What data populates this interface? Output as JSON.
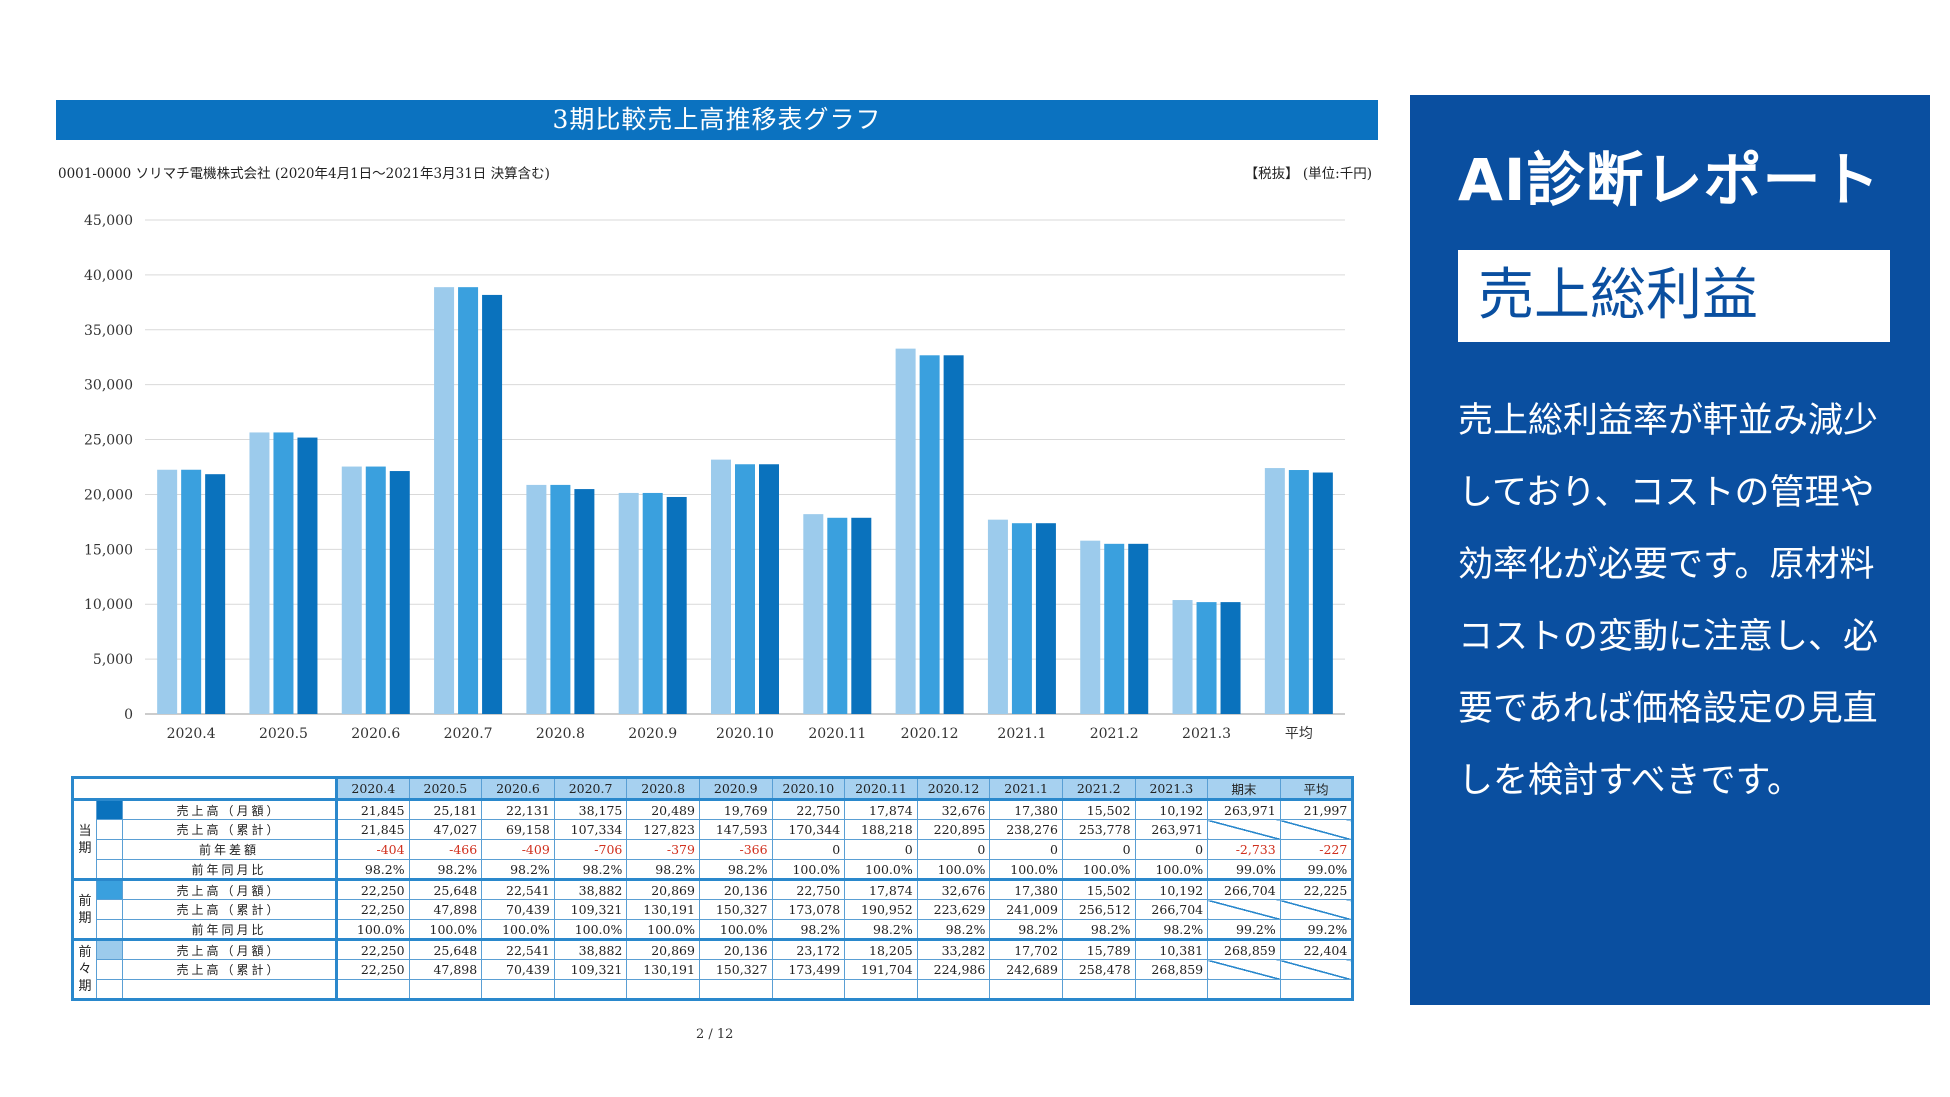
{
  "header": {
    "title": "3期比較売上高推移表グラフ",
    "company": "0001-0000 ソリマチ電機株式会社 (2020年4月1日～2021年3月31日 決算含む)",
    "tax_unit": "【税抜】 (単位:千円)"
  },
  "chart_data": {
    "type": "bar",
    "categories": [
      "2020.4",
      "2020.5",
      "2020.6",
      "2020.7",
      "2020.8",
      "2020.9",
      "2020.10",
      "2020.11",
      "2020.12",
      "2021.1",
      "2021.2",
      "2021.3",
      "平均"
    ],
    "series": [
      {
        "values": [
          22250,
          25648,
          22541,
          38882,
          20869,
          20136,
          23172,
          18205,
          33282,
          17702,
          15789,
          10381,
          22404
        ]
      },
      {
        "values": [
          22250,
          25648,
          22541,
          38882,
          20869,
          20136,
          22750,
          17874,
          32676,
          17380,
          15502,
          10192,
          22225
        ]
      },
      {
        "values": [
          21845,
          25181,
          22131,
          38175,
          20489,
          19769,
          22750,
          17874,
          32676,
          17380,
          15502,
          10192,
          21997
        ]
      }
    ],
    "yticks": [
      "0",
      "5,000",
      "10,000",
      "15,000",
      "20,000",
      "25,000",
      "30,000",
      "35,000",
      "40,000",
      "45,000"
    ],
    "ylim": [
      0,
      45000
    ],
    "grid": true,
    "colors": [
      "#9ccbec",
      "#3aa0de",
      "#0a72bd"
    ]
  },
  "table": {
    "columns": [
      "2020.4",
      "2020.5",
      "2020.6",
      "2020.7",
      "2020.8",
      "2020.9",
      "2020.10",
      "2020.11",
      "2020.12",
      "2021.1",
      "2021.2",
      "2021.3",
      "期末",
      "平均"
    ],
    "swatch_colors": [
      "#0a72bd",
      "#3aa0de",
      "#9ccbec"
    ],
    "groups": [
      {
        "label": "当期",
        "rows": [
          {
            "label": "売上高（月額）",
            "values": [
              "21,845",
              "25,181",
              "22,131",
              "38,175",
              "20,489",
              "19,769",
              "22,750",
              "17,874",
              "32,676",
              "17,380",
              "15,502",
              "10,192",
              "263,971",
              "21,997"
            ]
          },
          {
            "label": "売上高（累計）",
            "values": [
              "21,845",
              "47,027",
              "69,158",
              "107,334",
              "127,823",
              "147,593",
              "170,344",
              "188,218",
              "220,895",
              "238,276",
              "253,778",
              "263,971",
              "",
              ""
            ]
          },
          {
            "label": "前年差額",
            "values": [
              "-404",
              "-466",
              "-409",
              "-706",
              "-379",
              "-366",
              "0",
              "0",
              "0",
              "0",
              "0",
              "0",
              "-2,733",
              "-227"
            ]
          },
          {
            "label": "前年同月比",
            "values": [
              "98.2%",
              "98.2%",
              "98.2%",
              "98.2%",
              "98.2%",
              "98.2%",
              "100.0%",
              "100.0%",
              "100.0%",
              "100.0%",
              "100.0%",
              "100.0%",
              "99.0%",
              "99.0%"
            ]
          }
        ]
      },
      {
        "label": "前期",
        "rows": [
          {
            "label": "売上高（月額）",
            "values": [
              "22,250",
              "25,648",
              "22,541",
              "38,882",
              "20,869",
              "20,136",
              "22,750",
              "17,874",
              "32,676",
              "17,380",
              "15,502",
              "10,192",
              "266,704",
              "22,225"
            ]
          },
          {
            "label": "売上高（累計）",
            "values": [
              "22,250",
              "47,898",
              "70,439",
              "109,321",
              "130,191",
              "150,327",
              "173,078",
              "190,952",
              "223,629",
              "241,009",
              "256,512",
              "266,704",
              "",
              ""
            ]
          },
          {
            "label": "前年同月比",
            "values": [
              "100.0%",
              "100.0%",
              "100.0%",
              "100.0%",
              "100.0%",
              "100.0%",
              "98.2%",
              "98.2%",
              "98.2%",
              "98.2%",
              "98.2%",
              "98.2%",
              "99.2%",
              "99.2%"
            ]
          }
        ]
      },
      {
        "label": "前々期",
        "rows": [
          {
            "label": "売上高（月額）",
            "values": [
              "22,250",
              "25,648",
              "22,541",
              "38,882",
              "20,869",
              "20,136",
              "23,172",
              "18,205",
              "33,282",
              "17,702",
              "15,789",
              "10,381",
              "268,859",
              "22,404"
            ]
          },
          {
            "label": "売上高（累計）",
            "values": [
              "22,250",
              "47,898",
              "70,439",
              "109,321",
              "130,191",
              "150,327",
              "173,499",
              "191,704",
              "224,986",
              "242,689",
              "258,478",
              "268,859",
              "",
              ""
            ]
          },
          {
            "label": "",
            "values": [
              "",
              "",
              "",
              "",
              "",
              "",
              "",
              "",
              "",
              "",
              "",
              "",
              "",
              ""
            ]
          }
        ]
      }
    ]
  },
  "footer": {
    "page": "2 / 12"
  },
  "ai_panel": {
    "title": "AI診断レポート",
    "subtitle": "売上総利益",
    "body": "売上総利益率が軒並み減少しており、コストの管理や効率化が必要です。原材料コストの変動に注意し、必要であれば価格設定の見直しを検討すべきです。"
  }
}
